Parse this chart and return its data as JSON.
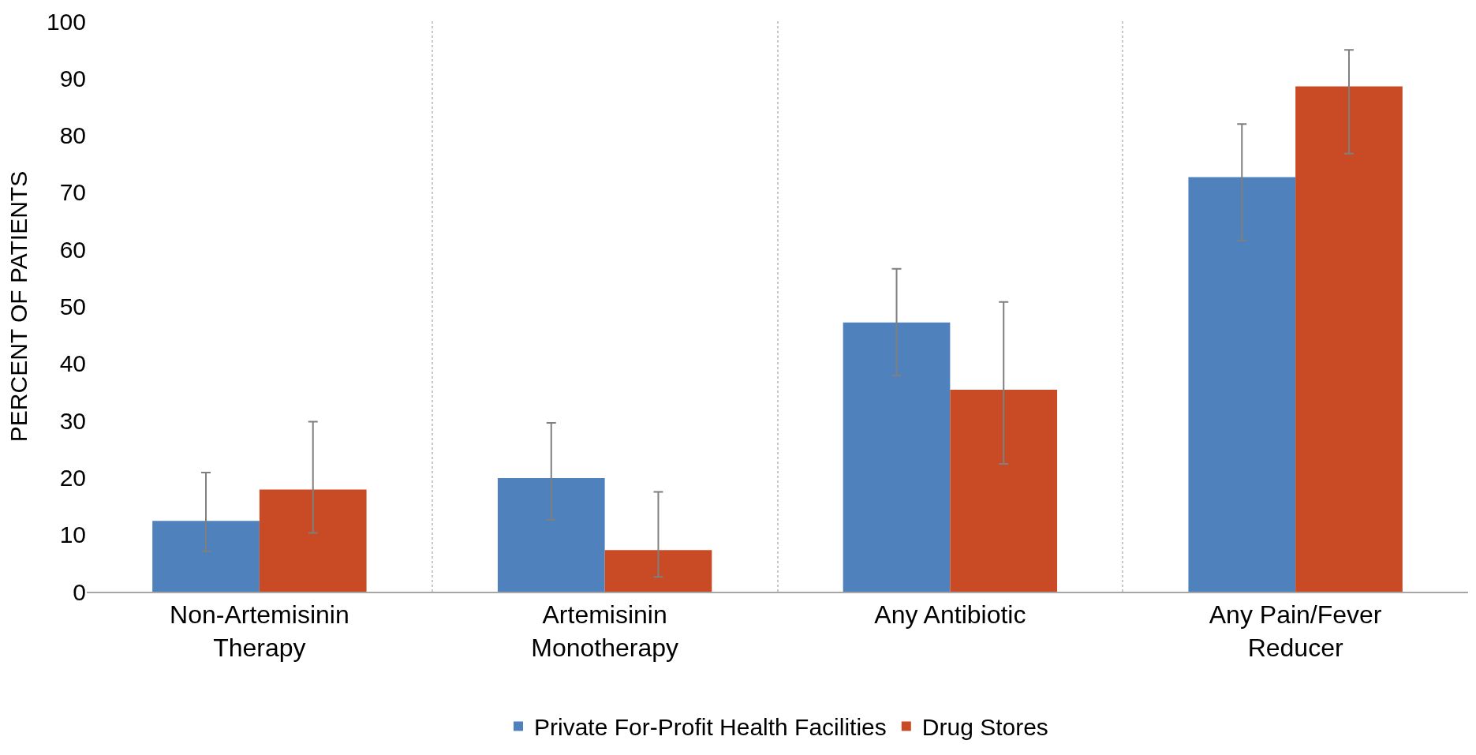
{
  "chart_data": {
    "type": "bar",
    "ylabel": "PERCENT OF PATIENTS",
    "categories": [
      "Non-Artemisinin Therapy",
      "Artemisinin Monotherapy",
      "Any Antibiotic",
      "Any Pain/Fever Reducer"
    ],
    "series": [
      {
        "name": "Private For-Profit Health Facilities",
        "color": "#4f81bd",
        "values": [
          12.4,
          19.9,
          47.2,
          72.7
        ],
        "errors": [
          [
            7.1,
            20.9
          ],
          [
            12.6,
            29.6
          ],
          [
            37.9,
            56.6
          ],
          [
            61.6,
            82
          ]
        ]
      },
      {
        "name": "Drug Stores",
        "color": "#c84b25",
        "values": [
          17.9,
          7.3,
          35.4,
          88.6
        ],
        "errors": [
          [
            10.3,
            29.8
          ],
          [
            2.6,
            17.5
          ],
          [
            22.4,
            50.8
          ],
          [
            76.8,
            95
          ]
        ]
      }
    ],
    "ylim": [
      0,
      100
    ],
    "yticks": [
      0,
      10,
      20,
      30,
      40,
      50,
      60,
      70,
      80,
      90,
      100
    ],
    "grid": "x",
    "legend": "bottom"
  }
}
